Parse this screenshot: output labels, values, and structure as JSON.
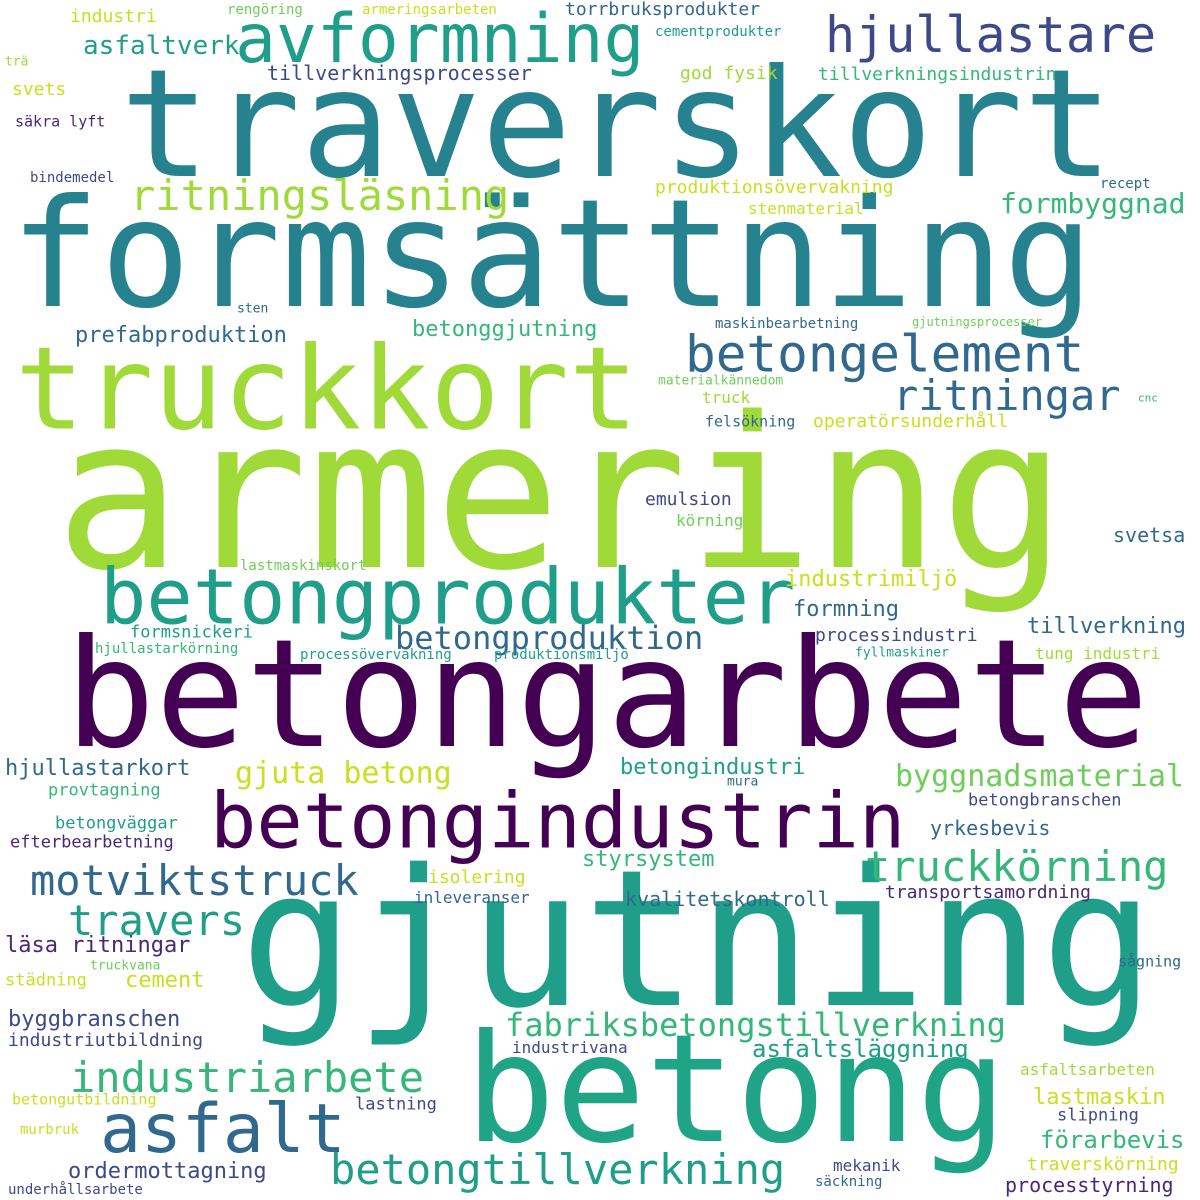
{
  "colors": {
    "dark_purple": "#440154",
    "indigo": "#482878",
    "slate_blue": "#3e4989",
    "steel_blue": "#31688e",
    "teal_blue": "#26828e",
    "teal": "#1f9e89",
    "green": "#35b779",
    "lime": "#a0da39",
    "yellow": "#c8e020"
  },
  "words": [
    {
      "text": "traverskort",
      "color": "#26828e"
    },
    {
      "text": "formsättning",
      "color": "#26828e"
    },
    {
      "text": "armering",
      "color": "#a0da39"
    },
    {
      "text": "betongarbete",
      "color": "#440154"
    },
    {
      "text": "gjutning",
      "color": "#1f9e89"
    },
    {
      "text": "betong",
      "color": "#20a486"
    },
    {
      "text": "truckkort",
      "color": "#a0da39"
    },
    {
      "text": "avformning",
      "color": "#1f9e89"
    },
    {
      "text": "hjullastare",
      "color": "#3e4989"
    },
    {
      "text": "betongprodukter",
      "color": "#1f9e89"
    },
    {
      "text": "betongindustrin",
      "color": "#440154"
    },
    {
      "text": "betongelement",
      "color": "#31688e"
    },
    {
      "text": "asfalt",
      "color": "#31688e"
    },
    {
      "text": "ritningsläsning",
      "color": "#a0da39"
    },
    {
      "text": "ritningar",
      "color": "#31688e"
    },
    {
      "text": "truckkörning",
      "color": "#35b779"
    },
    {
      "text": "motviktstruck",
      "color": "#31688e"
    },
    {
      "text": "travers",
      "color": "#1f9e89"
    },
    {
      "text": "industriarbete",
      "color": "#35b779"
    },
    {
      "text": "betongtillverkning",
      "color": "#1f9e89"
    },
    {
      "text": "betongproduktion",
      "color": "#31688e"
    },
    {
      "text": "fabriksbetongstillverkning",
      "color": "#35b779"
    },
    {
      "text": "byggnadsmaterial",
      "color": "#6ece58"
    },
    {
      "text": "gjuta betong",
      "color": "#c8e020"
    },
    {
      "text": "formbyggnad",
      "color": "#35b779"
    },
    {
      "text": "asfaltverk",
      "color": "#1f9e89"
    },
    {
      "text": "tillverkningsprocesser",
      "color": "#3e4989"
    },
    {
      "text": "prefabproduktion",
      "color": "#31688e"
    },
    {
      "text": "betonggjutning",
      "color": "#35b779"
    },
    {
      "text": "hjullastarkort",
      "color": "#31688e"
    },
    {
      "text": "asfaltsläggning",
      "color": "#1f9e89"
    },
    {
      "text": "förarbevis",
      "color": "#35b779"
    },
    {
      "text": "ordermottagning",
      "color": "#3e4989"
    },
    {
      "text": "lastmaskin",
      "color": "#c8e020"
    },
    {
      "text": "industrimiljö",
      "color": "#c8e020"
    },
    {
      "text": "tillverkning",
      "color": "#31688e"
    },
    {
      "text": "betongindustri",
      "color": "#1f9e89"
    },
    {
      "text": "styrsystem",
      "color": "#35b779"
    },
    {
      "text": "yrkesbevis",
      "color": "#31688e"
    },
    {
      "text": "byggbranschen",
      "color": "#3e4989"
    },
    {
      "text": "cement",
      "color": "#c8e020"
    },
    {
      "text": "läsa ritningar",
      "color": "#482878"
    },
    {
      "text": "kvalitetskontroll",
      "color": "#31688e"
    },
    {
      "text": "processtyrning",
      "color": "#482878"
    },
    {
      "text": "traverskörning",
      "color": "#c8e020"
    },
    {
      "text": "formning",
      "color": "#31688e"
    },
    {
      "text": "processindustri",
      "color": "#3e4989"
    },
    {
      "text": "svetsa",
      "color": "#31688e"
    },
    {
      "text": "transportsamordning",
      "color": "#482878"
    },
    {
      "text": "operatörsunderhåll",
      "color": "#c8e020"
    },
    {
      "text": "produktionsövervakning",
      "color": "#c8e020"
    },
    {
      "text": "tillverkningsindustrin",
      "color": "#35b779"
    },
    {
      "text": "torrbruksprodukter",
      "color": "#31688e"
    },
    {
      "text": "god fysik",
      "color": "#a0da39"
    },
    {
      "text": "stenmaterial",
      "color": "#c8e020"
    },
    {
      "text": "industri",
      "color": "#c8e020"
    },
    {
      "text": "svets",
      "color": "#c8e020"
    },
    {
      "text": "isolering",
      "color": "#c8e020"
    },
    {
      "text": "inleveranser",
      "color": "#31688e"
    },
    {
      "text": "emulsion",
      "color": "#3e4989"
    },
    {
      "text": "körning",
      "color": "#6ece58"
    },
    {
      "text": "felsökning",
      "color": "#31688e"
    },
    {
      "text": "truck",
      "color": "#a0da39"
    },
    {
      "text": "betongväggar",
      "color": "#1f9e89"
    },
    {
      "text": "efterbearbetning",
      "color": "#482878"
    },
    {
      "text": "provtagning",
      "color": "#35b779"
    },
    {
      "text": "formsnickeri",
      "color": "#1f9e89"
    },
    {
      "text": "industriutbildning",
      "color": "#3e4989"
    },
    {
      "text": "betongbranschen",
      "color": "#3e4989"
    },
    {
      "text": "industrivana",
      "color": "#3e4989"
    },
    {
      "text": "lastning",
      "color": "#3e4989"
    },
    {
      "text": "slipning",
      "color": "#3e4989"
    },
    {
      "text": "mekanik",
      "color": "#3e4989"
    },
    {
      "text": "städning",
      "color": "#c8e020"
    },
    {
      "text": "tung industri",
      "color": "#a0da39"
    },
    {
      "text": "asfaltsarbeten",
      "color": "#a0da39"
    },
    {
      "text": "säkra lyft",
      "color": "#482878"
    },
    {
      "text": "bindemedel",
      "color": "#3e4989"
    },
    {
      "text": "rengöring",
      "color": "#6ece58"
    },
    {
      "text": "armeringsarbeten",
      "color": "#c8e020"
    },
    {
      "text": "cementprodukter",
      "color": "#1f9e89"
    },
    {
      "text": "recept",
      "color": "#31688e"
    },
    {
      "text": "maskinbearbetning",
      "color": "#31688e"
    },
    {
      "text": "gjutningsprocesser",
      "color": "#6ece58"
    },
    {
      "text": "materialkännedom",
      "color": "#6ece58"
    },
    {
      "text": "sten",
      "color": "#31688e"
    },
    {
      "text": "trä",
      "color": "#a0da39"
    },
    {
      "text": "cnc",
      "color": "#35b779"
    },
    {
      "text": "lastmaskinskort",
      "color": "#6ece58"
    },
    {
      "text": "hjullastarkörning",
      "color": "#35b779"
    },
    {
      "text": "processövervakning",
      "color": "#1f9e89"
    },
    {
      "text": "produktionsmiljö",
      "color": "#1f9e89"
    },
    {
      "text": "fyllmaskiner",
      "color": "#1f9e89"
    },
    {
      "text": "mura",
      "color": "#31688e"
    },
    {
      "text": "truckvana",
      "color": "#6ece58"
    },
    {
      "text": "sågning",
      "color": "#31688e"
    },
    {
      "text": "betongutbildning",
      "color": "#c8e020"
    },
    {
      "text": "murbruk",
      "color": "#c8e020"
    },
    {
      "text": "underhållsarbete",
      "color": "#3e4989"
    },
    {
      "text": "säckning",
      "color": "#31688e"
    }
  ]
}
